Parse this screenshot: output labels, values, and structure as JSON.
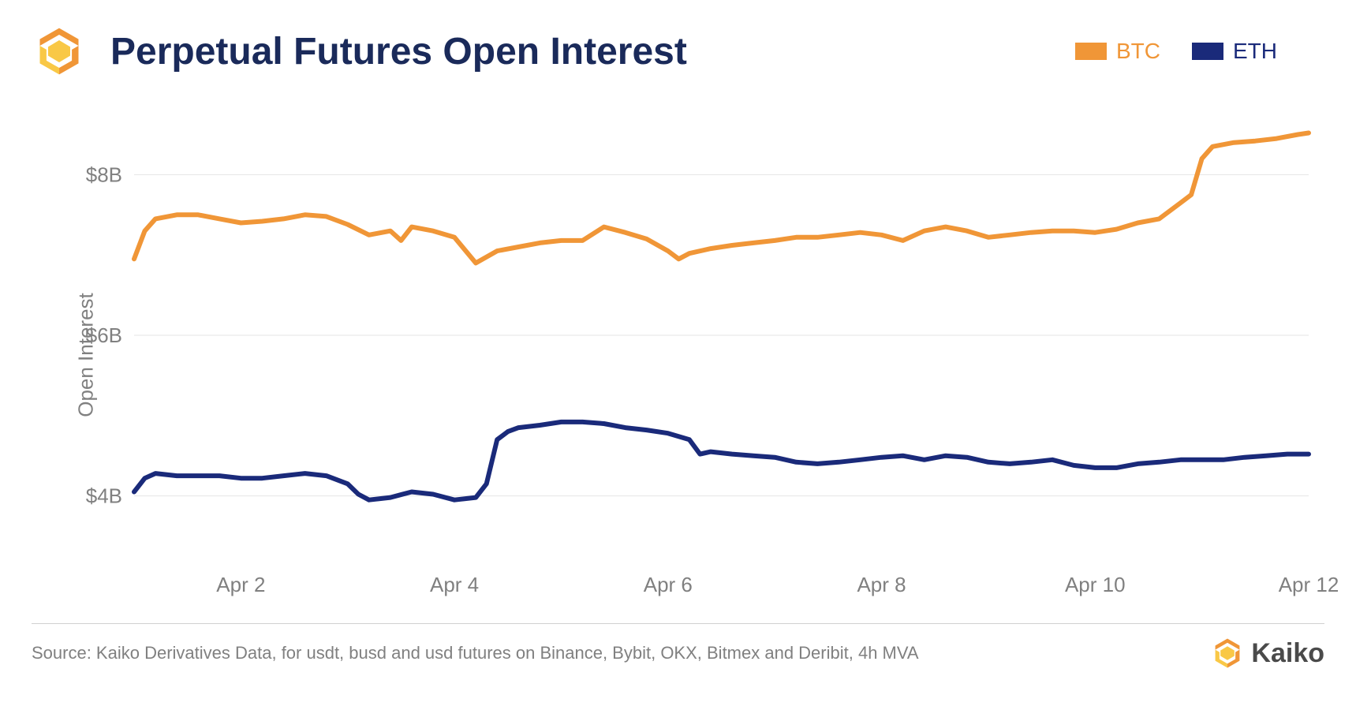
{
  "title": "Perpetual Futures Open Interest",
  "ylabel": "Open Interest",
  "legend": [
    {
      "label": "BTC",
      "color": "#f09637"
    },
    {
      "label": "ETH",
      "color": "#1a2a7a"
    }
  ],
  "chart": {
    "type": "line",
    "background_color": "#ffffff",
    "grid_color": "#e5e5e5",
    "axis_text_color": "#808080",
    "title_color": "#1a2a5a",
    "title_fontsize": 48,
    "label_fontsize": 26,
    "line_width": 6,
    "ylim": [
      3.2,
      8.8
    ],
    "yticks": [
      4,
      6,
      8
    ],
    "ytick_labels": [
      "$4B",
      "$6B",
      "$8B"
    ],
    "xlim": [
      1,
      12
    ],
    "xticks": [
      2,
      4,
      6,
      8,
      10,
      12
    ],
    "xtick_labels": [
      "Apr 2",
      "Apr 4",
      "Apr 6",
      "Apr 8",
      "Apr 10",
      "Apr 12"
    ],
    "series": [
      {
        "name": "BTC",
        "color": "#f09637",
        "x": [
          1.0,
          1.1,
          1.2,
          1.4,
          1.6,
          1.8,
          2.0,
          2.2,
          2.4,
          2.6,
          2.8,
          3.0,
          3.2,
          3.4,
          3.5,
          3.6,
          3.8,
          4.0,
          4.2,
          4.4,
          4.6,
          4.8,
          5.0,
          5.2,
          5.4,
          5.6,
          5.8,
          6.0,
          6.1,
          6.2,
          6.4,
          6.6,
          6.8,
          7.0,
          7.2,
          7.4,
          7.6,
          7.8,
          8.0,
          8.2,
          8.4,
          8.6,
          8.8,
          9.0,
          9.2,
          9.4,
          9.6,
          9.8,
          10.0,
          10.2,
          10.4,
          10.6,
          10.8,
          10.9,
          11.0,
          11.1,
          11.3,
          11.5,
          11.7,
          11.9,
          12.0
        ],
        "y": [
          6.95,
          7.3,
          7.45,
          7.5,
          7.5,
          7.45,
          7.4,
          7.42,
          7.45,
          7.5,
          7.48,
          7.38,
          7.25,
          7.3,
          7.18,
          7.35,
          7.3,
          7.22,
          6.9,
          7.05,
          7.1,
          7.15,
          7.18,
          7.18,
          7.35,
          7.28,
          7.2,
          7.05,
          6.95,
          7.02,
          7.08,
          7.12,
          7.15,
          7.18,
          7.22,
          7.22,
          7.25,
          7.28,
          7.25,
          7.18,
          7.3,
          7.35,
          7.3,
          7.22,
          7.25,
          7.28,
          7.3,
          7.3,
          7.28,
          7.32,
          7.4,
          7.45,
          7.65,
          7.75,
          8.2,
          8.35,
          8.4,
          8.42,
          8.45,
          8.5,
          8.52
        ]
      },
      {
        "name": "ETH",
        "color": "#1a2a7a",
        "x": [
          1.0,
          1.1,
          1.2,
          1.4,
          1.6,
          1.8,
          2.0,
          2.2,
          2.4,
          2.6,
          2.8,
          3.0,
          3.1,
          3.2,
          3.4,
          3.6,
          3.8,
          4.0,
          4.2,
          4.3,
          4.4,
          4.5,
          4.6,
          4.8,
          5.0,
          5.2,
          5.4,
          5.6,
          5.8,
          6.0,
          6.2,
          6.3,
          6.4,
          6.6,
          6.8,
          7.0,
          7.2,
          7.4,
          7.6,
          7.8,
          8.0,
          8.2,
          8.4,
          8.6,
          8.8,
          9.0,
          9.2,
          9.4,
          9.6,
          9.8,
          10.0,
          10.2,
          10.4,
          10.6,
          10.8,
          11.0,
          11.2,
          11.4,
          11.6,
          11.8,
          12.0
        ],
        "y": [
          4.05,
          4.22,
          4.28,
          4.25,
          4.25,
          4.25,
          4.22,
          4.22,
          4.25,
          4.28,
          4.25,
          4.15,
          4.02,
          3.95,
          3.98,
          4.05,
          4.02,
          3.95,
          3.98,
          4.15,
          4.7,
          4.8,
          4.85,
          4.88,
          4.92,
          4.92,
          4.9,
          4.85,
          4.82,
          4.78,
          4.7,
          4.52,
          4.55,
          4.52,
          4.5,
          4.48,
          4.42,
          4.4,
          4.42,
          4.45,
          4.48,
          4.5,
          4.45,
          4.5,
          4.48,
          4.42,
          4.4,
          4.42,
          4.45,
          4.38,
          4.35,
          4.35,
          4.4,
          4.42,
          4.45,
          4.45,
          4.45,
          4.48,
          4.5,
          4.52,
          4.52
        ]
      }
    ]
  },
  "source": "Source: Kaiko Derivatives Data, for usdt, busd and usd futures on Binance, Bybit, OKX, Bitmex and Deribit, 4h MVA",
  "footer_brand": "Kaiko",
  "logo_colors": {
    "outer": "#f09637",
    "inner": "#f9c846"
  }
}
